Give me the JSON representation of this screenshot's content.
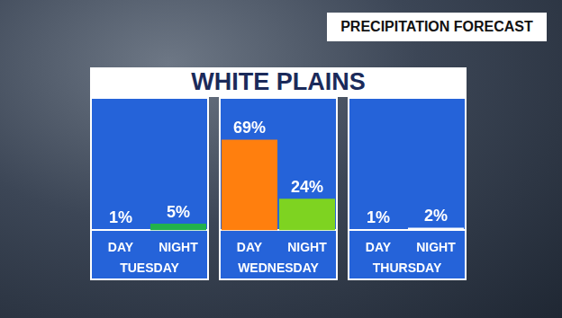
{
  "header": "PRECIPITATION FORECAST",
  "title": "WHITE PLAINS",
  "chart_data": [
    {
      "type": "bar",
      "xlabel": "TUESDAY",
      "categories": [
        "DAY",
        "NIGHT"
      ],
      "values": [
        1,
        5
      ],
      "value_labels": [
        "1%",
        "5%"
      ],
      "colors": [
        "#ffffff",
        "#22b14c"
      ],
      "data_labels": true,
      "ylim": [
        0,
        100
      ],
      "grid": false,
      "tick_labels": "x"
    },
    {
      "type": "bar",
      "xlabel": "WEDNESDAY",
      "categories": [
        "DAY",
        "NIGHT"
      ],
      "values": [
        69,
        24
      ],
      "value_labels": [
        "69%",
        "24%"
      ],
      "colors": [
        "#ff7f0e",
        "#7ed321"
      ],
      "data_labels": true,
      "ylim": [
        0,
        100
      ],
      "grid": false,
      "tick_labels": "x"
    },
    {
      "type": "bar",
      "xlabel": "THURSDAY",
      "categories": [
        "DAY",
        "NIGHT"
      ],
      "values": [
        1,
        2
      ],
      "value_labels": [
        "1%",
        "2%"
      ],
      "colors": [
        "#ffffff",
        "#ffffff"
      ],
      "data_labels": true,
      "ylim": [
        0,
        100
      ],
      "grid": false,
      "tick_labels": "x"
    }
  ]
}
